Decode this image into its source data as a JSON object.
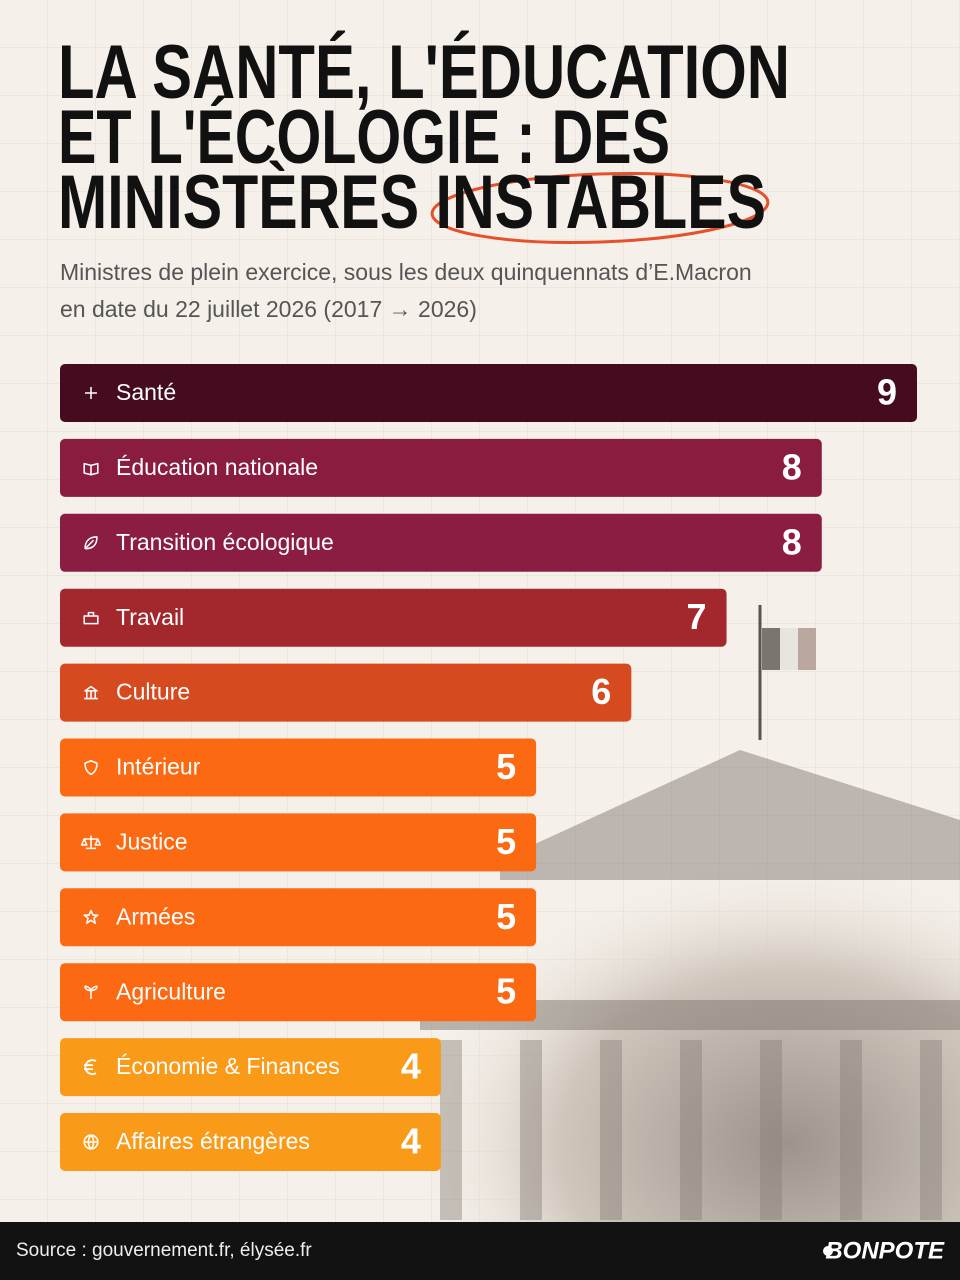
{
  "chart_data": {
    "type": "bar",
    "title": [
      "LA SANTÉ, L'ÉDUCATION",
      "ET L'ÉCOLOGIE : DES",
      "MINISTÈRES INSTABLES"
    ],
    "subtitle": [
      "Ministres de plein exercice, sous les deux quinquennats d’E.Macron",
      "en date du 22 juillet 2026 (2017 → 2026)"
    ],
    "categories": [
      "Santé",
      "Éducation nationale",
      "Transition écologique",
      "Travail",
      "Culture",
      "Intérieur",
      "Justice",
      "Armées",
      "Agriculture",
      "Économie & Finances",
      "Affaires étrangères"
    ],
    "values": [
      9,
      8,
      8,
      7,
      6,
      5,
      5,
      5,
      5,
      4,
      4
    ],
    "colors": [
      "#450c1f",
      "#8a1c40",
      "#8b1d42",
      "#a3282e",
      "#d64a1f",
      "#fb6a12",
      "#fb6a12",
      "#fb6a12",
      "#fb6a12",
      "#f99a19",
      "#f99a19"
    ],
    "source": "Source :  gouvernement.fr, élysée.fr",
    "brand": "BONPOTE"
  }
}
